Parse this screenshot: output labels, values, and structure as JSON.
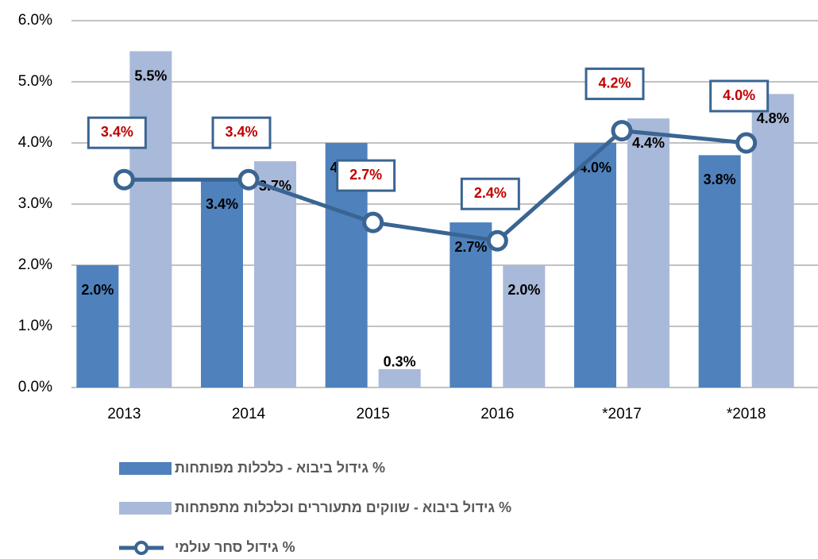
{
  "chart_data": {
    "type": "bar-line",
    "categories": [
      "2013",
      "2014",
      "2015",
      "2016",
      "*2017",
      "*2018"
    ],
    "series": [
      {
        "name": "% גידול ביבוא - כלכלות מפותחות",
        "type": "bar",
        "color": "#4f81bd",
        "values": [
          2.0,
          3.4,
          4.0,
          2.7,
          4.0,
          3.8
        ],
        "value_labels": [
          "2.0%",
          "3.4%",
          "4.0%",
          "2.7%",
          "4.0%",
          "3.8%"
        ]
      },
      {
        "name": "% גידול ביבוא - שווקים מתעוררים וכלכלות מתפתחות",
        "type": "bar",
        "color": "#a9b9d9",
        "values": [
          5.5,
          3.7,
          0.3,
          2.0,
          4.4,
          4.8
        ],
        "value_labels": [
          "5.5%",
          "3.7%",
          "0.3%",
          "2.0%",
          "4.4%",
          "4.8%"
        ]
      },
      {
        "name": "% גידול סחר עולמי",
        "type": "line",
        "color": "#3a6592",
        "values": [
          3.4,
          3.4,
          2.7,
          2.4,
          4.2,
          4.0
        ],
        "value_labels": [
          "3.4%",
          "3.4%",
          "2.7%",
          "2.4%",
          "4.2%",
          "4.0%"
        ]
      }
    ],
    "ylim": [
      0,
      6
    ],
    "yticks": [
      {
        "value": 0,
        "label": "0.0%"
      },
      {
        "value": 1,
        "label": "1.0%"
      },
      {
        "value": 2,
        "label": "2.0%"
      },
      {
        "value": 3,
        "label": "3.0%"
      },
      {
        "value": 4,
        "label": "4.0%"
      },
      {
        "value": 5,
        "label": "5.0%"
      },
      {
        "value": 6,
        "label": "6.0%"
      }
    ],
    "grid": true,
    "legend": "bottom"
  }
}
